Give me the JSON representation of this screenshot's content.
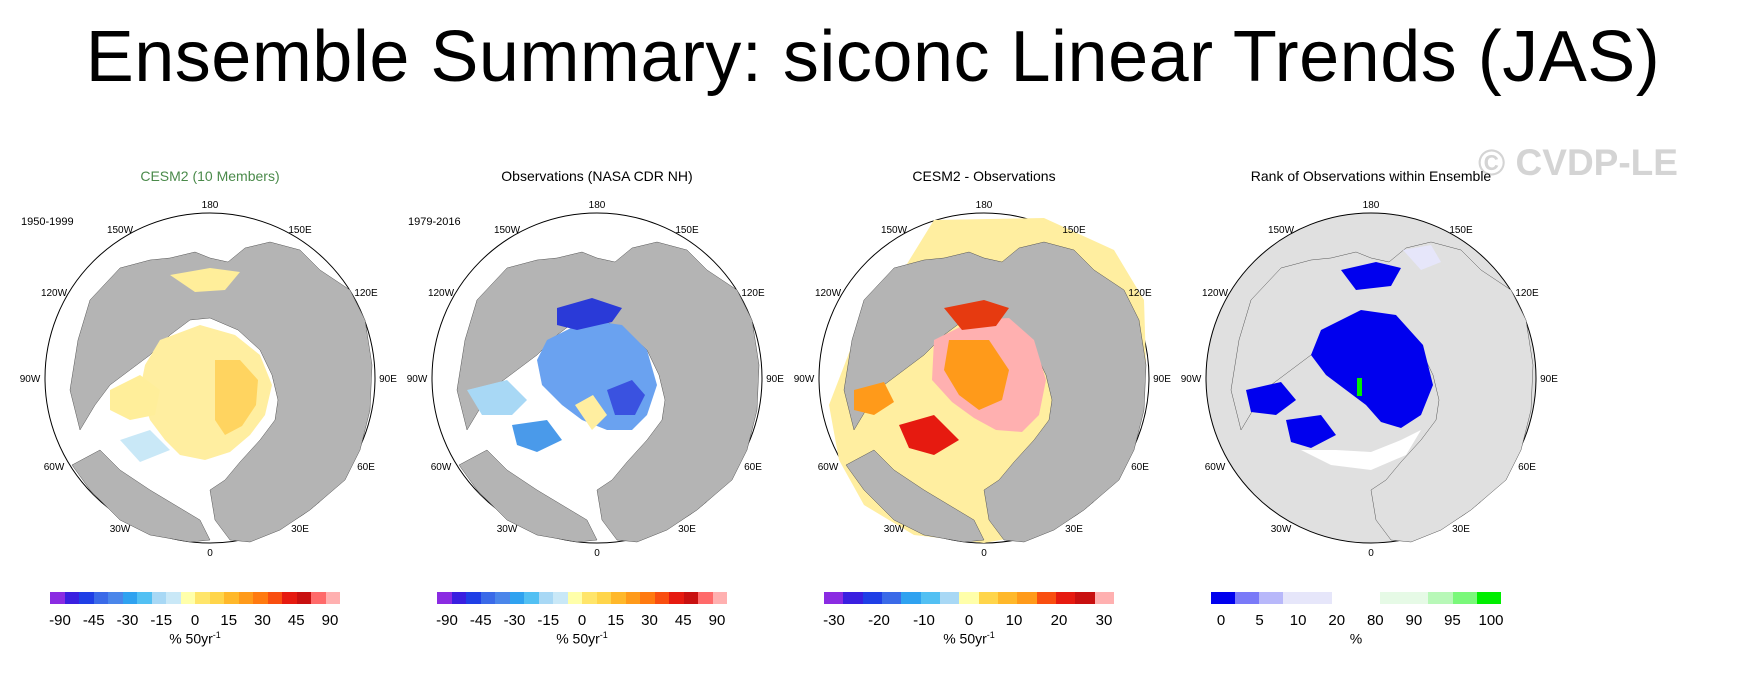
{
  "title": "Ensemble Summary: siconc Linear Trends (JAS)",
  "watermark": "© CVDP-LE",
  "colors": {
    "land": "#b4b4b4",
    "rank_background": "#e0e0e0",
    "model_title": "#4a8a4a"
  },
  "longitude_labels": [
    "180",
    "150E",
    "120E",
    "90E",
    "60E",
    "30E",
    "0",
    "30W",
    "60W",
    "90W",
    "120W",
    "150W"
  ],
  "panels": [
    {
      "title": "CESM2 (10 Members)",
      "period": "1950-1999",
      "map_field": "positive-trend-yellow-orange",
      "colorbar": {
        "ticks": [
          "-90",
          "-45",
          "-30",
          "-15",
          "0",
          "15",
          "30",
          "45",
          "90"
        ],
        "unit": "% 50yr",
        "unit_exp": "-1",
        "colors": [
          "#8a2be2",
          "#3a1fe0",
          "#1f3fe6",
          "#3a6ae8",
          "#4a86ea",
          "#2fa2f0",
          "#52c0f3",
          "#a8d8f5",
          "#c9e8f7",
          "#ffffaa",
          "#ffe56a",
          "#ffd54a",
          "#ffb82a",
          "#ff9a1a",
          "#ff7a10",
          "#f94e10",
          "#e61a10",
          "#c81010",
          "#ff6a6a",
          "#ffb0b0"
        ]
      }
    },
    {
      "title": "Observations (NASA CDR NH)",
      "period": "1979-2016",
      "map_field": "negative-trend-blue",
      "colorbar": {
        "ticks": [
          "-90",
          "-45",
          "-30",
          "-15",
          "0",
          "15",
          "30",
          "45",
          "90"
        ],
        "unit": "% 50yr",
        "unit_exp": "-1",
        "colors": [
          "#8a2be2",
          "#3a1fe0",
          "#1f3fe6",
          "#3a6ae8",
          "#4a86ea",
          "#2fa2f0",
          "#52c0f3",
          "#a8d8f5",
          "#c9e8f7",
          "#ffffaa",
          "#ffe56a",
          "#ffd54a",
          "#ffb82a",
          "#ff9a1a",
          "#ff7a10",
          "#f94e10",
          "#e61a10",
          "#c81010",
          "#ff6a6a",
          "#ffb0b0"
        ]
      }
    },
    {
      "title": "CESM2 - Observations",
      "period": "",
      "map_field": "difference-red-yellow",
      "colorbar": {
        "ticks": [
          "-30",
          "-20",
          "-10",
          "0",
          "10",
          "20",
          "30"
        ],
        "unit": "% 50yr",
        "unit_exp": "-1",
        "colors": [
          "#8a2be2",
          "#3a1fe0",
          "#1f3fe6",
          "#3a6ae8",
          "#2fa2f0",
          "#52c0f3",
          "#a8d8f5",
          "#ffffaa",
          "#ffd54a",
          "#ffb82a",
          "#ff9a1a",
          "#f94e10",
          "#e61a10",
          "#c81010",
          "#ffb0b0"
        ]
      }
    },
    {
      "title": "Rank of Observations within Ensemble",
      "period": "",
      "map_field": "rank-blue-white",
      "colorbar": {
        "ticks": [
          "0",
          "5",
          "10",
          "20",
          "80",
          "90",
          "95",
          "100"
        ],
        "unit": "%",
        "unit_exp": "",
        "colors": [
          "#0000ee",
          "#7a7af8",
          "#b8b8fa",
          "#e6e6fa",
          "#e6e6fa",
          "#ffffff",
          "#ffffff",
          "#e6fae6",
          "#e6fae6",
          "#b8f8b8",
          "#7af87a",
          "#00ee00"
        ]
      }
    }
  ]
}
